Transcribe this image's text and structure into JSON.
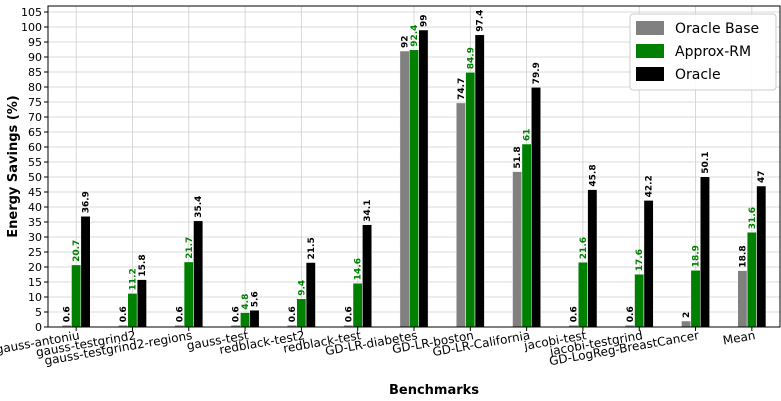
{
  "chart_data": {
    "type": "bar",
    "xlabel": "Benchmarks",
    "ylabel": "Energy Savings (%)",
    "ylim": [
      0,
      107
    ],
    "yticks": [
      0,
      5,
      10,
      15,
      20,
      25,
      30,
      35,
      40,
      45,
      50,
      55,
      60,
      65,
      70,
      75,
      80,
      85,
      90,
      95,
      100,
      105
    ],
    "grid": true,
    "legend_position": "top-right",
    "categories": [
      "gauss-antoniu",
      "gauss-testgrind2",
      "gauss-testgrind2-regions",
      "gauss-test",
      "redblack-test2",
      "redblack-test",
      "GD-LR-diabetes",
      "GD-LR-boston",
      "GD-LR-California",
      "jacobi-test",
      "jacobi-testgrind",
      "GD-LogReg-BreastCancer",
      "Mean"
    ],
    "series": [
      {
        "name": "Oracle Base",
        "color": "#808080",
        "label_color": "#000000",
        "values": [
          0.6,
          0.6,
          0.6,
          0.6,
          0.6,
          0.6,
          92,
          74.7,
          51.8,
          0.6,
          0.6,
          2,
          18.8
        ],
        "labels": [
          "0.6",
          "0.6",
          "0.6",
          "0.6",
          "0.6",
          "0.6",
          "92",
          "74.7",
          "51.8",
          "0.6",
          "0.6",
          "2",
          "18.8"
        ]
      },
      {
        "name": "Approx-RM",
        "color": "#008000",
        "label_color": "#008000",
        "values": [
          20.7,
          11.2,
          21.7,
          4.8,
          9.4,
          14.6,
          92.4,
          84.9,
          61,
          21.6,
          17.6,
          18.9,
          31.6
        ],
        "labels": [
          "20.7",
          "11.2",
          "21.7",
          "4.8",
          "9.4",
          "14.6",
          "92.4",
          "84.9",
          "61",
          "21.6",
          "17.6",
          "18.9",
          "31.6"
        ]
      },
      {
        "name": "Oracle",
        "color": "#000000",
        "label_color": "#000000",
        "values": [
          36.9,
          15.8,
          35.4,
          5.6,
          21.5,
          34.1,
          99,
          97.4,
          79.9,
          45.8,
          42.2,
          50.1,
          47
        ],
        "labels": [
          "36.9",
          "15.8",
          "35.4",
          "5.6",
          "21.5",
          "34.1",
          "99",
          "97.4",
          "79.9",
          "45.8",
          "42.2",
          "50.1",
          "47"
        ]
      }
    ]
  }
}
